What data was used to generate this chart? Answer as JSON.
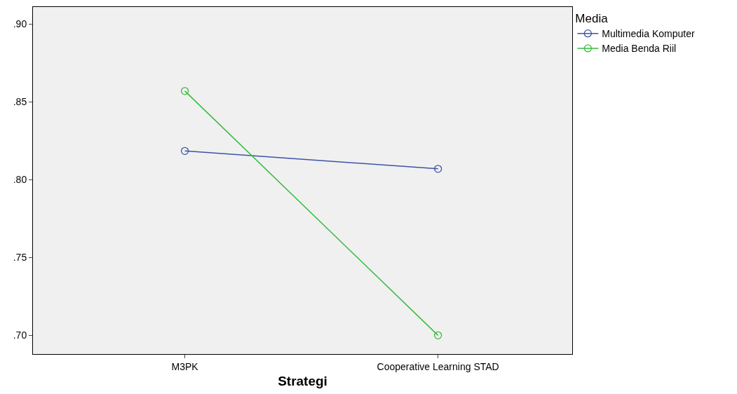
{
  "chart_data": {
    "type": "line",
    "xlabel": "Strategi",
    "legend_title": "Media",
    "legend": "top right",
    "categories": [
      "M3PK",
      "Cooperative Learning STAD"
    ],
    "series": [
      {
        "name": "Multimedia Komputer",
        "color": "#3d52a8",
        "values": [
          0.8185,
          0.807
        ]
      },
      {
        "name": "Media Benda Riil",
        "color": "#36bb3f",
        "values": [
          0.857,
          0.7
        ]
      }
    ],
    "ylim": [
      0.688,
      0.911
    ],
    "yticks": [
      {
        "value": 0.7,
        "label": ".70"
      },
      {
        "value": 0.75,
        "label": ".75"
      },
      {
        "value": 0.8,
        "label": ".80"
      },
      {
        "value": 0.85,
        "label": ".85"
      },
      {
        "value": 0.9,
        "label": ".90"
      }
    ],
    "grid": false,
    "marker": "circle",
    "line_style": "solid"
  }
}
